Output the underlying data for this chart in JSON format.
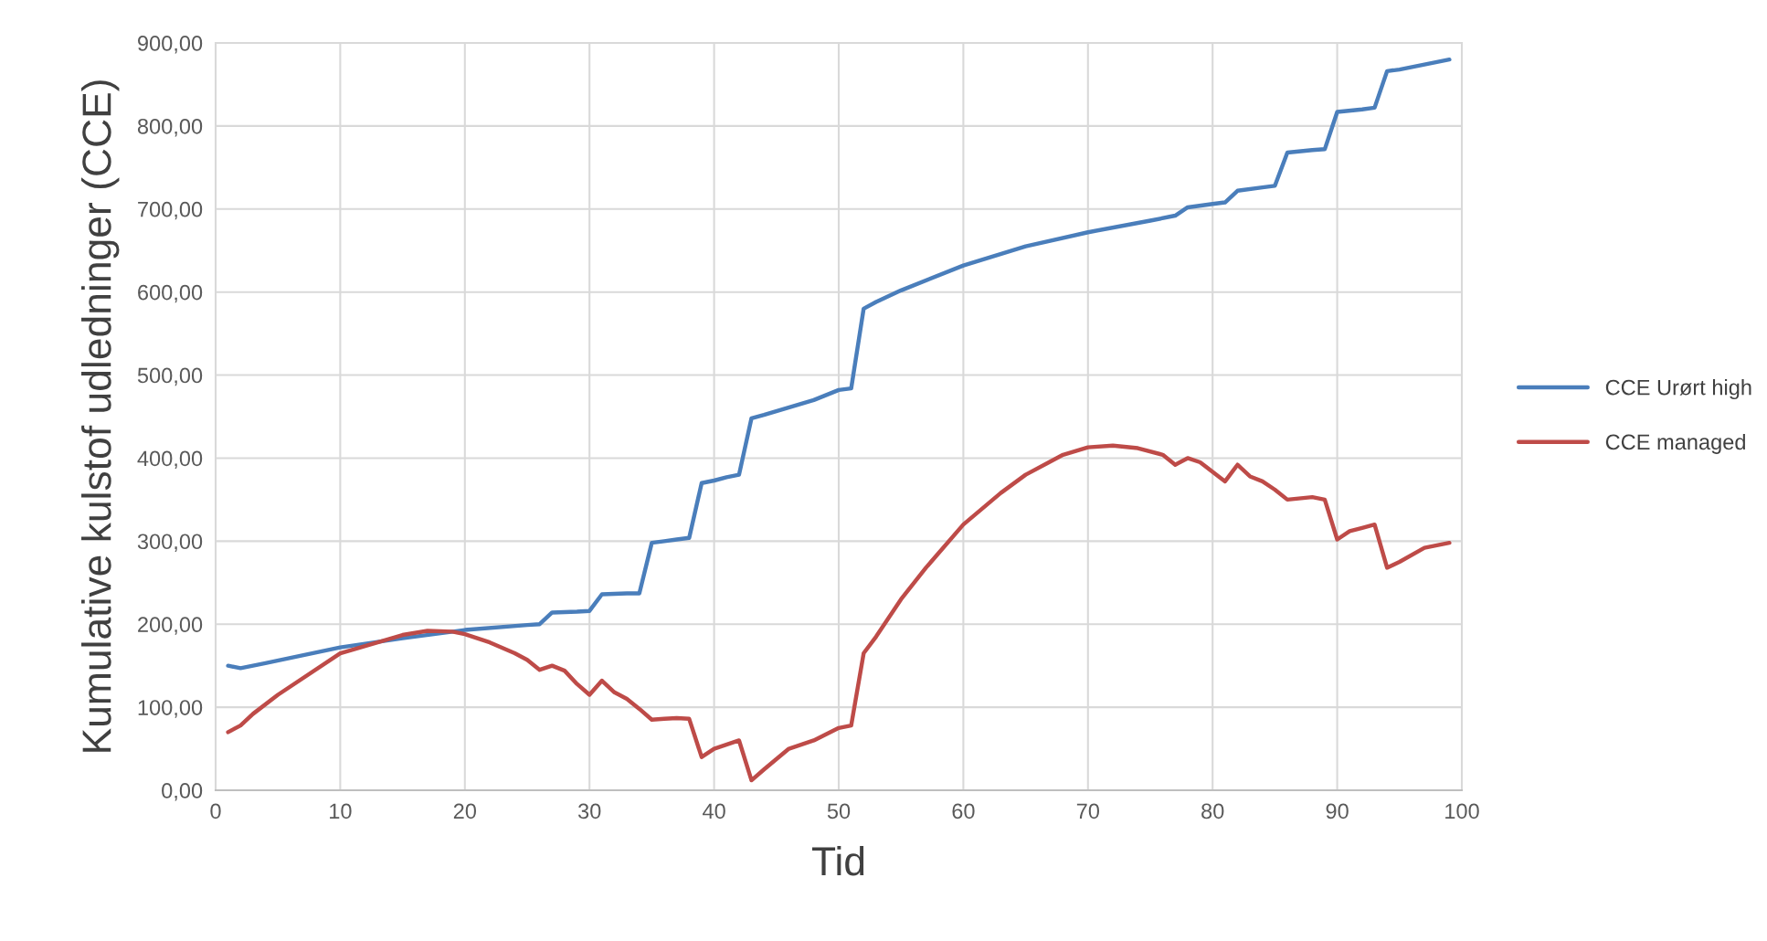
{
  "chart_data": {
    "type": "line",
    "xlabel": "Tid",
    "ylabel": "Kumulative kulstof udledninger (CCE)",
    "xlim": [
      0,
      100
    ],
    "xticks": [
      0,
      10,
      20,
      30,
      40,
      50,
      60,
      70,
      80,
      90,
      100
    ],
    "ylim": [
      0,
      900
    ],
    "yticks": [
      {
        "value": 0,
        "label": "0,00"
      },
      {
        "value": 100,
        "label": "100,00"
      },
      {
        "value": 200,
        "label": "200,00"
      },
      {
        "value": 300,
        "label": "300,00"
      },
      {
        "value": 400,
        "label": "400,00"
      },
      {
        "value": 500,
        "label": "500,00"
      },
      {
        "value": 600,
        "label": "600,00"
      },
      {
        "value": 700,
        "label": "700,00"
      },
      {
        "value": 800,
        "label": "800,00"
      },
      {
        "value": 900,
        "label": "900,00"
      }
    ],
    "grid": true,
    "legend": "right",
    "marker": "none",
    "line_style": "solid",
    "series": [
      {
        "name": "CCE Urørt high",
        "color": "#4a7ebb",
        "x": [
          1,
          2,
          4,
          10,
          15,
          20,
          25,
          26,
          27,
          29,
          30,
          31,
          33,
          34,
          35,
          36,
          37,
          38,
          39,
          40,
          41,
          42,
          43,
          44,
          48,
          50,
          51,
          52,
          53,
          55,
          60,
          65,
          70,
          75,
          77,
          78,
          80,
          81,
          82,
          84,
          85,
          86,
          88,
          89,
          90,
          92,
          93,
          94,
          95,
          99
        ],
        "values": [
          150,
          147,
          153,
          172,
          183,
          193,
          199,
          200,
          214,
          215,
          216,
          236,
          237,
          237,
          298,
          300,
          302,
          304,
          370,
          373,
          377,
          380,
          448,
          452,
          470,
          482,
          484,
          580,
          588,
          602,
          632,
          655,
          672,
          686,
          692,
          702,
          706,
          708,
          722,
          726,
          728,
          768,
          771,
          772,
          817,
          820,
          822,
          866,
          868,
          880
        ]
      },
      {
        "name": "CCE managed",
        "color": "#be4b48",
        "x": [
          1,
          2,
          3,
          5,
          10,
          15,
          17,
          19,
          20,
          22,
          24,
          25,
          26,
          27,
          28,
          29,
          30,
          31,
          32,
          33,
          34,
          35,
          36,
          37,
          38,
          39,
          40,
          42,
          43,
          44,
          46,
          48,
          50,
          51,
          52,
          53,
          55,
          57,
          60,
          63,
          65,
          68,
          70,
          72,
          74,
          76,
          77,
          78,
          79,
          81,
          82,
          83,
          84,
          85,
          86,
          88,
          89,
          90,
          91,
          92,
          93,
          94,
          95,
          97,
          99
        ],
        "values": [
          70,
          78,
          92,
          115,
          165,
          187,
          192,
          191,
          188,
          178,
          165,
          157,
          145,
          150,
          144,
          128,
          115,
          132,
          118,
          110,
          98,
          85,
          86,
          87,
          86,
          40,
          50,
          60,
          12,
          25,
          50,
          60,
          75,
          78,
          165,
          185,
          230,
          268,
          320,
          358,
          380,
          404,
          413,
          415,
          412,
          404,
          392,
          400,
          395,
          372,
          392,
          378,
          372,
          362,
          350,
          353,
          350,
          302,
          312,
          316,
          320,
          268,
          275,
          292,
          298
        ]
      }
    ]
  }
}
